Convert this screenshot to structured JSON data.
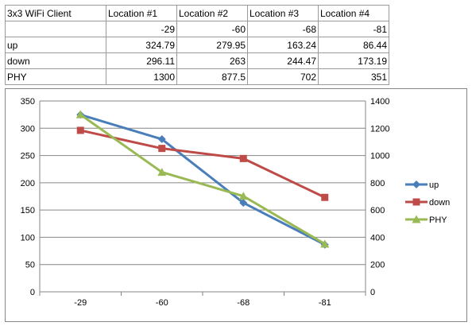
{
  "table": {
    "header": [
      "3x3 WiFi Client",
      "Location #1",
      "Location #2",
      "Location #3",
      "Location #4"
    ],
    "rows": [
      {
        "label": "",
        "values": [
          "-29",
          "-60",
          "-68",
          "-81"
        ]
      },
      {
        "label": "up",
        "values": [
          "324.79",
          "279.95",
          "163.24",
          "86.44"
        ]
      },
      {
        "label": "down",
        "values": [
          "296.11",
          "263",
          "244.47",
          "173.19"
        ]
      },
      {
        "label": "PHY",
        "values": [
          "1300",
          "877.5",
          "702",
          "351"
        ]
      }
    ]
  },
  "chart_data": {
    "type": "line",
    "categories": [
      "-29",
      "-60",
      "-68",
      "-81"
    ],
    "series": [
      {
        "name": "up",
        "values": [
          324.79,
          279.95,
          163.24,
          86.44
        ],
        "axis": "left",
        "color": "#4a7ebb",
        "marker": "diamond"
      },
      {
        "name": "down",
        "values": [
          296.11,
          263,
          244.47,
          173.19
        ],
        "axis": "left",
        "color": "#be4b48",
        "marker": "square"
      },
      {
        "name": "PHY",
        "values": [
          1300,
          877.5,
          702,
          351
        ],
        "axis": "right",
        "color": "#98b954",
        "marker": "triangle"
      }
    ],
    "y_left": {
      "min": 0,
      "max": 350,
      "step": 50
    },
    "y_right": {
      "min": 0,
      "max": 1400,
      "step": 200
    },
    "grid": true,
    "legend_position": "right",
    "title": "",
    "xlabel": "",
    "ylabel": ""
  }
}
